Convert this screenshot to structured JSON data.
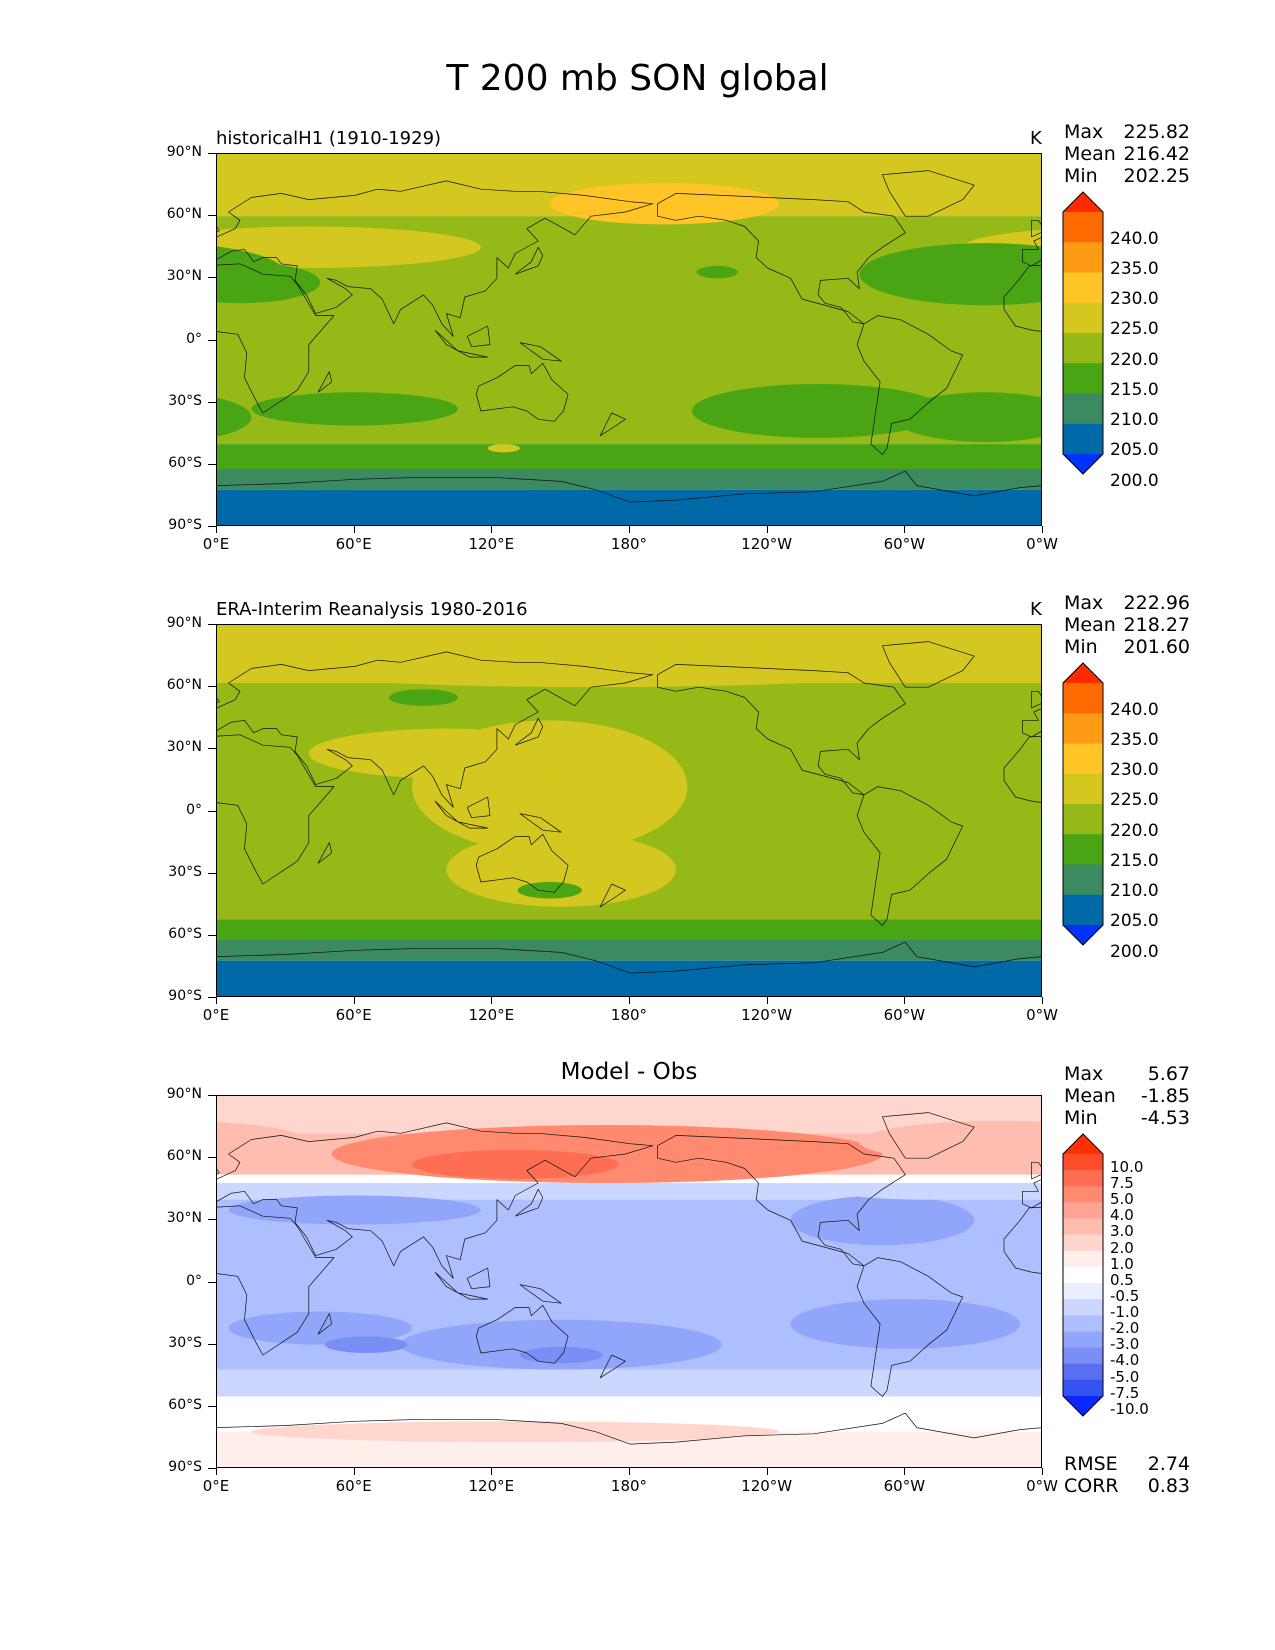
{
  "chart_data": {
    "type": "heatmap",
    "title": "T 200 mb SON global",
    "x_ticks": [
      "0°E",
      "60°E",
      "120°E",
      "180°",
      "120°W",
      "60°W",
      "0°W"
    ],
    "y_ticks": [
      "90°N",
      "60°N",
      "30°N",
      "0°",
      "30°S",
      "60°S",
      "90°S"
    ],
    "lat_range": [
      -90,
      90
    ],
    "lon_range": [
      0,
      360
    ],
    "panels": [
      {
        "id": "model",
        "title": "historicalH1 (1910-1929)",
        "units": "K",
        "stats": [
          {
            "label": "Max",
            "value": "225.82"
          },
          {
            "label": "Mean",
            "value": "216.42"
          },
          {
            "label": "Min",
            "value": "202.25"
          }
        ],
        "colorbar": {
          "labels": [
            "240.0",
            "235.0",
            "230.0",
            "225.0",
            "220.0",
            "215.0",
            "210.0",
            "205.0",
            "200.0"
          ],
          "colors": [
            "#ff2a00",
            "#ff6a00",
            "#ff9a14",
            "#ffc425",
            "#d4c71f",
            "#95b917",
            "#4aa514",
            "#3b8a62",
            "#006aa8",
            "#0032ff"
          ]
        },
        "zonal_bands": [
          {
            "lat": [
              60,
              90
            ],
            "color": "#d4c71f"
          },
          {
            "lat": [
              -50,
              60
            ],
            "color": "#95b917"
          },
          {
            "lat": [
              -62,
              -50
            ],
            "color": "#4aa514"
          },
          {
            "lat": [
              -72,
              -62
            ],
            "color": "#3b8a62"
          },
          {
            "lat": [
              -90,
              -72
            ],
            "color": "#006aa8"
          }
        ],
        "features": [
          {
            "lon": 195,
            "lat": 66,
            "rlon": 50,
            "rlat": 10,
            "color": "#ffc425"
          },
          {
            "lon": 40,
            "lat": 45,
            "rlon": 75,
            "rlat": 10,
            "color": "#d4c71f"
          },
          {
            "lon": 10,
            "lat": 28,
            "rlon": 35,
            "rlat": 10,
            "color": "#4aa514"
          },
          {
            "lon": 335,
            "lat": 32,
            "rlon": 55,
            "rlat": 15,
            "color": "#4aa514"
          },
          {
            "lon": 60,
            "lat": -33,
            "rlon": 45,
            "rlat": 8,
            "color": "#4aa514"
          },
          {
            "lon": 262,
            "lat": -34,
            "rlon": 55,
            "rlat": 13,
            "color": "#4aa514"
          },
          {
            "lon": 335,
            "lat": -37,
            "rlon": 40,
            "rlat": 12,
            "color": "#4aa514"
          },
          {
            "lon": 125,
            "lat": -52,
            "rlon": 7,
            "rlat": 2,
            "color": "#d4c71f"
          },
          {
            "lon": 218,
            "lat": 33,
            "rlon": 9,
            "rlat": 3,
            "color": "#4aa514"
          }
        ]
      },
      {
        "id": "obs",
        "title": "ERA-Interim Reanalysis 1980-2016",
        "units": "K",
        "stats": [
          {
            "label": "Max",
            "value": "222.96"
          },
          {
            "label": "Mean",
            "value": "218.27"
          },
          {
            "label": "Min",
            "value": "201.60"
          }
        ],
        "colorbar": {
          "labels": [
            "240.0",
            "235.0",
            "230.0",
            "225.0",
            "220.0",
            "215.0",
            "210.0",
            "205.0",
            "200.0"
          ],
          "colors": [
            "#ff2a00",
            "#ff6a00",
            "#ff9a14",
            "#ffc425",
            "#d4c71f",
            "#95b917",
            "#4aa514",
            "#3b8a62",
            "#006aa8",
            "#0032ff"
          ]
        },
        "zonal_bands": [
          {
            "lat": [
              62,
              90
            ],
            "color": "#d4c71f"
          },
          {
            "lat": [
              -52,
              62
            ],
            "color": "#95b917"
          },
          {
            "lat": [
              -62,
              -52
            ],
            "color": "#4aa514"
          },
          {
            "lat": [
              -72,
              -62
            ],
            "color": "#3b8a62"
          },
          {
            "lat": [
              -90,
              -72
            ],
            "color": "#006aa8"
          }
        ],
        "features": [
          {
            "lon": 165,
            "lat": 70,
            "rlon": 150,
            "rlat": 10,
            "color": "#d4c71f"
          },
          {
            "lon": 145,
            "lat": 12,
            "rlon": 60,
            "rlat": 32,
            "color": "#d4c71f"
          },
          {
            "lon": 100,
            "lat": 28,
            "rlon": 60,
            "rlat": 12,
            "color": "#d4c71f"
          },
          {
            "lon": 150,
            "lat": -28,
            "rlon": 50,
            "rlat": 18,
            "color": "#d4c71f"
          },
          {
            "lon": 90,
            "lat": 55,
            "rlon": 15,
            "rlat": 4,
            "color": "#4aa514"
          },
          {
            "lon": 145,
            "lat": -38,
            "rlon": 14,
            "rlat": 4,
            "color": "#4aa514"
          }
        ]
      },
      {
        "id": "diff",
        "title": "Model - Obs",
        "units": "",
        "stats": [
          {
            "label": "Max",
            "value": "5.67"
          },
          {
            "label": "Mean",
            "value": "-1.85"
          },
          {
            "label": "Min",
            "value": "-4.53"
          }
        ],
        "colorbar": {
          "labels": [
            "10.0",
            "7.5",
            "5.0",
            "4.0",
            "3.0",
            "2.0",
            "1.0",
            "0.5",
            "-0.5",
            "-1.0",
            "-2.0",
            "-3.0",
            "-4.0",
            "-5.0",
            "-7.5",
            "-10.0"
          ],
          "colors": [
            "#ff3000",
            "#ff4d2a",
            "#ff6e52",
            "#ff8a70",
            "#ffa493",
            "#ffbdb0",
            "#ffd6cd",
            "#ffeeea",
            "#ffffff",
            "#e8eeff",
            "#ccd7ff",
            "#aebfff",
            "#91a6fb",
            "#7a8ff5",
            "#5a6ef0",
            "#3553f2",
            "#0a28ff"
          ]
        },
        "zonal_bands": [
          {
            "lat": [
              72,
              90
            ],
            "color": "#ffd6cd"
          },
          {
            "lat": [
              52,
              72
            ],
            "color": "#ffbdb0"
          },
          {
            "lat": [
              48,
              52
            ],
            "color": "#ffffff"
          },
          {
            "lat": [
              40,
              48
            ],
            "color": "#ccd7ff"
          },
          {
            "lat": [
              -42,
              40
            ],
            "color": "#aebfff"
          },
          {
            "lat": [
              -55,
              -42
            ],
            "color": "#ccd7ff"
          },
          {
            "lat": [
              -72,
              -55
            ],
            "color": "#ffffff"
          },
          {
            "lat": [
              -90,
              -72
            ],
            "color": "#ffeeea"
          }
        ],
        "features": [
          {
            "lon": 170,
            "lat": 62,
            "rlon": 120,
            "rlat": 14,
            "color": "#ff8a70"
          },
          {
            "lon": 130,
            "lat": 57,
            "rlon": 45,
            "rlat": 7,
            "color": "#ff6e52"
          },
          {
            "lon": 340,
            "lat": 68,
            "rlon": 60,
            "rlat": 10,
            "color": "#ffbdb0"
          },
          {
            "lon": 60,
            "lat": 35,
            "rlon": 55,
            "rlat": 7,
            "color": "#91a6fb"
          },
          {
            "lon": 290,
            "lat": 30,
            "rlon": 40,
            "rlat": 12,
            "color": "#91a6fb"
          },
          {
            "lon": 45,
            "lat": -22,
            "rlon": 40,
            "rlat": 8,
            "color": "#91a6fb"
          },
          {
            "lon": 150,
            "lat": -30,
            "rlon": 70,
            "rlat": 12,
            "color": "#91a6fb"
          },
          {
            "lon": 300,
            "lat": -20,
            "rlon": 50,
            "rlat": 12,
            "color": "#91a6fb"
          },
          {
            "lon": 65,
            "lat": -30,
            "rlon": 18,
            "rlat": 4,
            "color": "#7a8ff5"
          },
          {
            "lon": 150,
            "lat": -35,
            "rlon": 18,
            "rlat": 4,
            "color": "#7a8ff5"
          },
          {
            "lon": 130,
            "lat": -72,
            "rlon": 115,
            "rlat": 5,
            "color": "#ffd6cd"
          },
          {
            "lon": 310,
            "lat": 44,
            "rlon": 40,
            "rlat": 4,
            "color": "#ccd7ff"
          }
        ],
        "metrics": [
          {
            "label": "RMSE",
            "value": "2.74"
          },
          {
            "label": "CORR",
            "value": "0.83"
          }
        ]
      }
    ]
  }
}
